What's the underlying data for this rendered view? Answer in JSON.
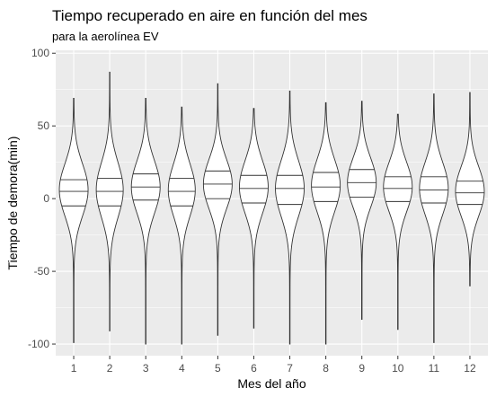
{
  "chart_data": {
    "type": "violin",
    "title": "Tiempo recuperado en aire en función del mes",
    "subtitle": "para la aerolínea EV",
    "xlabel": "Mes del año",
    "ylabel": "Tiempo de demora(min)",
    "categories": [
      "1",
      "2",
      "3",
      "4",
      "5",
      "6",
      "7",
      "8",
      "9",
      "10",
      "11",
      "12"
    ],
    "y_ticks": [
      -100,
      -50,
      0,
      50,
      100
    ],
    "ylim": [
      -108,
      102
    ],
    "grid": true,
    "panel_background": "#ebebeb",
    "grid_color": "#ffffff",
    "violin_fill": "#ffffff",
    "violin_stroke": "#333333",
    "violins": [
      {
        "month": "1",
        "min": -99,
        "max": 69,
        "q1": -5,
        "median": 5,
        "q3": 13,
        "center": 6,
        "sd": 18,
        "maxWidth": 16
      },
      {
        "month": "2",
        "min": -91,
        "max": 87,
        "q1": -5,
        "median": 5,
        "q3": 14,
        "center": 6,
        "sd": 19,
        "maxWidth": 15
      },
      {
        "month": "3",
        "min": -100,
        "max": 69,
        "q1": -1,
        "median": 8,
        "q3": 17,
        "center": 8,
        "sd": 18,
        "maxWidth": 16
      },
      {
        "month": "4",
        "min": -100,
        "max": 63,
        "q1": -5,
        "median": 5,
        "q3": 14,
        "center": 6,
        "sd": 18,
        "maxWidth": 15
      },
      {
        "month": "5",
        "min": -94,
        "max": 79,
        "q1": 0,
        "median": 10,
        "q3": 19,
        "center": 10,
        "sd": 17,
        "maxWidth": 16
      },
      {
        "month": "6",
        "min": -89,
        "max": 62,
        "q1": -3,
        "median": 7,
        "q3": 16,
        "center": 8,
        "sd": 18,
        "maxWidth": 16
      },
      {
        "month": "7",
        "min": -100,
        "max": 74,
        "q1": -4,
        "median": 7,
        "q3": 16,
        "center": 7,
        "sd": 19,
        "maxWidth": 16
      },
      {
        "month": "8",
        "min": -100,
        "max": 66,
        "q1": -2,
        "median": 8,
        "q3": 18,
        "center": 9,
        "sd": 18,
        "maxWidth": 16
      },
      {
        "month": "9",
        "min": -83,
        "max": 67,
        "q1": 1,
        "median": 11,
        "q3": 20,
        "center": 11,
        "sd": 17,
        "maxWidth": 16
      },
      {
        "month": "10",
        "min": -90,
        "max": 58,
        "q1": -2,
        "median": 7,
        "q3": 15,
        "center": 8,
        "sd": 17,
        "maxWidth": 16
      },
      {
        "month": "11",
        "min": -99,
        "max": 72,
        "q1": -3,
        "median": 6,
        "q3": 15,
        "center": 7,
        "sd": 18,
        "maxWidth": 16
      },
      {
        "month": "12",
        "min": -60,
        "max": 73,
        "q1": -4,
        "median": 4,
        "q3": 12,
        "center": 5,
        "sd": 17,
        "maxWidth": 16
      }
    ]
  }
}
